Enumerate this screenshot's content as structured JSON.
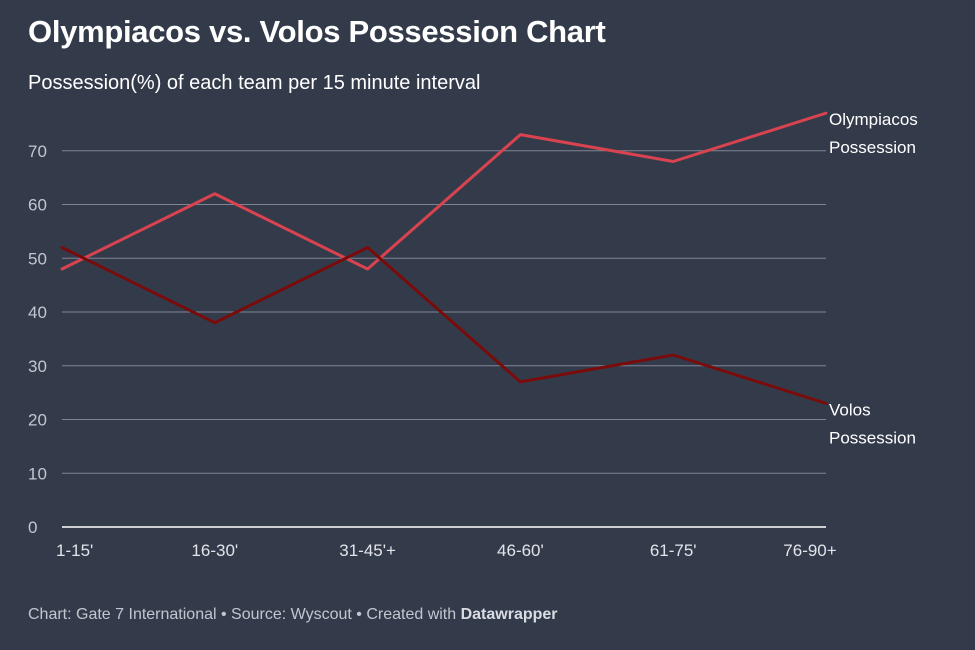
{
  "chart_data": {
    "type": "line",
    "title": "Olympiacos vs. Volos Possession Chart",
    "subtitle": "Possession(%) of each team per 15 minute interval",
    "categories": [
      "1-15'",
      "16-30'",
      "31-45'+",
      "46-60'",
      "61-75'",
      "76-90+"
    ],
    "series": [
      {
        "name": "Olympiacos Possession",
        "label_lines": [
          "Olympiacos",
          "Possession"
        ],
        "color": "#d9434f",
        "values": [
          48,
          62,
          48,
          73,
          68,
          77
        ]
      },
      {
        "name": "Volos Possession",
        "label_lines": [
          "Volos",
          "Possession"
        ],
        "color": "#7a0b0b",
        "values": [
          52,
          38,
          52,
          27,
          32,
          23
        ]
      }
    ],
    "yticks": [
      0,
      10,
      20,
      30,
      40,
      50,
      60,
      70
    ],
    "ylim": [
      0,
      80
    ],
    "grid": true,
    "legend": "inline-end-labels"
  },
  "footer": {
    "text": "Chart: Gate 7 International • Source: Wyscout • Created with ",
    "brand": "Datawrapper"
  }
}
